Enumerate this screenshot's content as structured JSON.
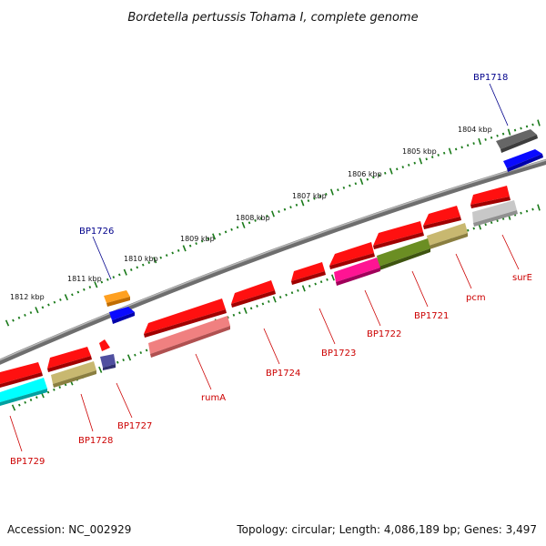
{
  "title": "Bordetella pertussis Tohama I, complete genome",
  "footer": {
    "accession": "Accession: NC_002929",
    "summary": "Topology: circular; Length: 4,086,189 bp; Genes: 3,497"
  },
  "colors": {
    "backbone": "#808080",
    "tick": "#1a7a1a",
    "forward_label": "#00008b",
    "reverse_label": "#cc0000"
  },
  "scale": {
    "labels": [
      "1804 kbp",
      "1805 kbp",
      "1806 kbp",
      "1807 kbp",
      "1808 kbp",
      "1809 kbp",
      "1810 kbp",
      "1811 kbp",
      "1812 kbp"
    ]
  },
  "labels": {
    "forward": [
      "BP1718",
      "BP1726"
    ],
    "reverse": [
      "surE",
      "pcm",
      "BP1721",
      "BP1722",
      "BP1723",
      "BP1724",
      "rumA",
      "BP1727",
      "BP1728",
      "BP1729"
    ]
  }
}
